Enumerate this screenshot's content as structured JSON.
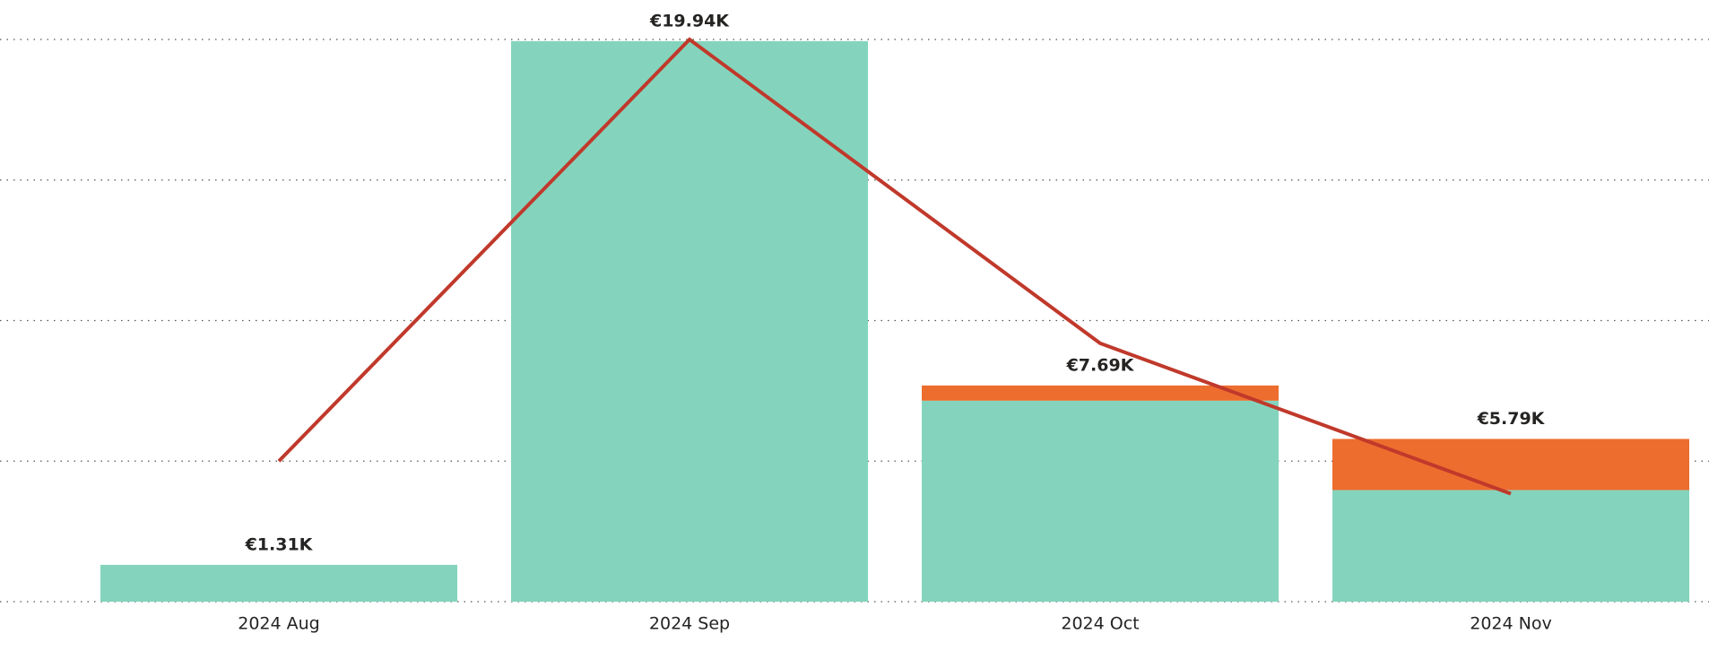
{
  "chart_data": {
    "type": "bar-line",
    "categories": [
      "2024 Aug",
      "2024 Sep",
      "2024 Oct",
      "2024 Nov"
    ],
    "series": [
      {
        "type": "bar",
        "color": "#84d4bd",
        "values": [
          1310,
          19940,
          7150,
          3970
        ]
      },
      {
        "type": "bar",
        "color": "#ed6d2f",
        "values": [
          0,
          0,
          540,
          1820
        ]
      },
      {
        "type": "line",
        "color": "#c0392b",
        "values": [
          5000,
          20000,
          9190,
          3840
        ]
      }
    ],
    "totals": [
      1310,
      19940,
      7690,
      5790
    ],
    "total_labels": [
      "€1.31K",
      "€19.94K",
      "€7.69K",
      "€5.79K"
    ],
    "ylim": [
      0,
      20000
    ],
    "yticks": [
      0,
      5000,
      10000,
      15000,
      20000
    ],
    "grid": true
  }
}
